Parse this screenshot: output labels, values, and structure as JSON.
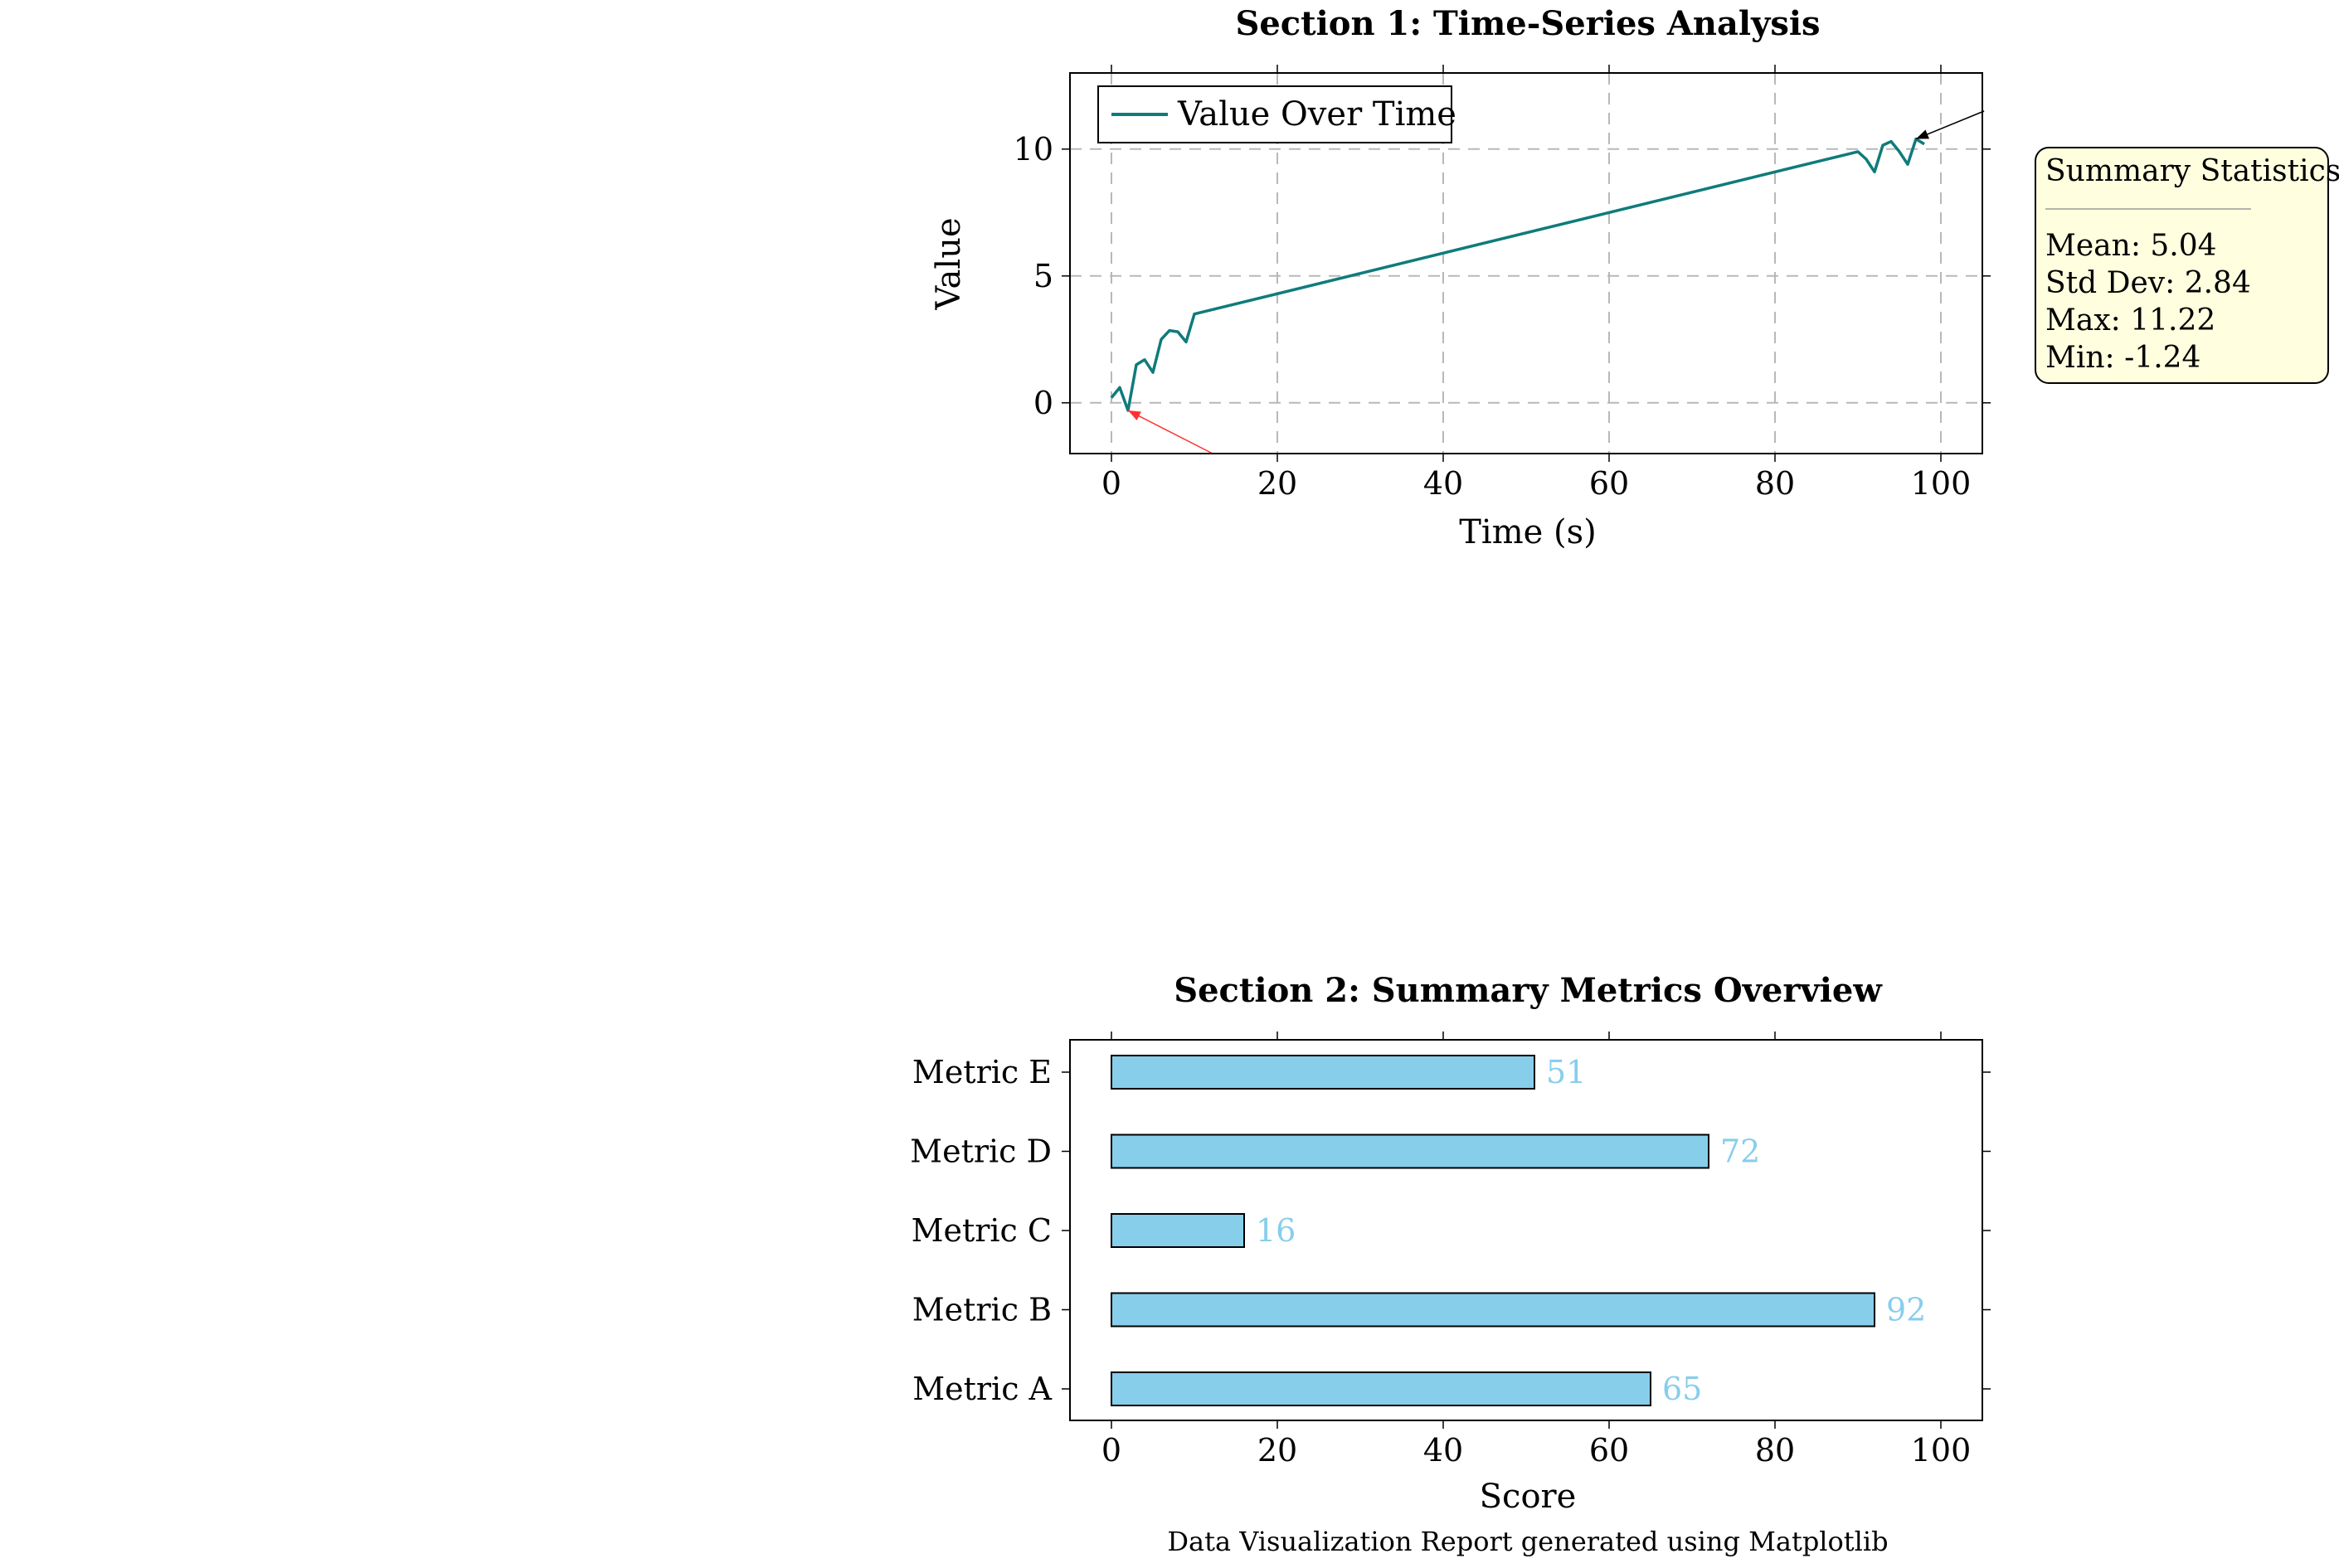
{
  "colors": {
    "line": "#0f7b7b",
    "bar_fill": "#87ceeb",
    "bar_label": "#87ceeb",
    "bar_edge": "#000000",
    "grid": "#b8b8b8",
    "stats_bg": "#ffffe0",
    "min_arrow": "#ff3333",
    "max_arrow": "#000000"
  },
  "chart_data": [
    {
      "type": "line",
      "title": "Section 1: Time-Series Analysis",
      "xlabel": "Time (s)",
      "ylabel": "Value",
      "xlim": [
        -5,
        105
      ],
      "ylim": [
        -2,
        13
      ],
      "xticks": [
        0,
        20,
        40,
        60,
        80,
        100
      ],
      "yticks": [
        0,
        5,
        10
      ],
      "grid": true,
      "grid_style": "dashed",
      "legend_placement": "top-left",
      "series": [
        {
          "name": "Value Over Time",
          "x": [
            0,
            1,
            2,
            3,
            4,
            5,
            6,
            7,
            8,
            9,
            10,
            90,
            91,
            92,
            93,
            94,
            95,
            96,
            97,
            98
          ],
          "y": [
            0.2,
            0.6,
            -0.3,
            1.5,
            1.7,
            1.2,
            2.5,
            2.85,
            2.8,
            2.4,
            3.5,
            9.9,
            9.6,
            9.1,
            10.15,
            10.3,
            9.9,
            9.4,
            10.4,
            10.2
          ]
        }
      ],
      "annotations": [
        {
          "type": "arrow",
          "role": "min",
          "x": 2,
          "y": -0.3
        },
        {
          "type": "arrow",
          "role": "max",
          "x": 97,
          "y": 10.4
        }
      ],
      "stats_box": {
        "header": "Summary Statistics:",
        "lines": [
          "Mean: 5.04",
          "Std Dev: 2.84",
          "Max: 11.22",
          "Min: -1.24"
        ]
      }
    },
    {
      "type": "bar",
      "orientation": "horizontal",
      "title": "Section 2: Summary Metrics Overview",
      "xlabel": "Score",
      "xlim": [
        -5,
        105
      ],
      "xticks": [
        0,
        20,
        40,
        60,
        80,
        100
      ],
      "grid": false,
      "categories": [
        "Metric A",
        "Metric B",
        "Metric C",
        "Metric D",
        "Metric E"
      ],
      "values": [
        65,
        92,
        16,
        72,
        51
      ]
    }
  ],
  "footer": "Data Visualization Report generated using Matplotlib"
}
